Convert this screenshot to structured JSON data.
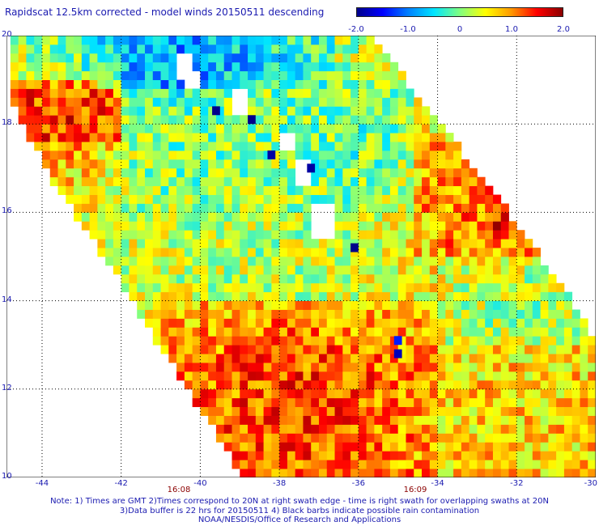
{
  "title": "Rapidscat 12.5km corrected - model winds 20150511 descending",
  "colorbar": {
    "ticks": [
      "-2.0",
      "-1.0",
      "0",
      "1.0",
      "2.0"
    ],
    "tick_values": [
      -2.0,
      -1.0,
      0,
      1.0,
      2.0
    ],
    "range": [
      -2.0,
      2.0
    ],
    "colors": [
      "#00008b",
      "#0000ff",
      "#0080ff",
      "#00e5ff",
      "#80ff80",
      "#ffff00",
      "#ff9900",
      "#ff0000",
      "#8b0000"
    ]
  },
  "chart_data": {
    "type": "heatmap",
    "title": "Rapidscat 12.5km corrected - model winds 20150511 descending",
    "xlabel": "",
    "ylabel": "",
    "x_ticks": [
      "-44",
      "-42",
      "-40",
      "-38",
      "-36",
      "-34",
      "-32",
      "-30"
    ],
    "x_tick_values": [
      -44,
      -42,
      -40,
      -38,
      -36,
      -34,
      -32,
      -30
    ],
    "y_ticks": [
      "10",
      "12",
      "14",
      "16",
      "18",
      "20"
    ],
    "y_tick_values": [
      10,
      12,
      14,
      16,
      18,
      20
    ],
    "xlim": [
      -44.9,
      -30
    ],
    "ylim": [
      10,
      20
    ],
    "grid": true,
    "grid_style": "dotted",
    "value_range": [
      -2.0,
      2.0
    ],
    "swath": {
      "description_lon_edges": {
        "left_edge": [
          [
            18.8,
            -44.9
          ],
          [
            16.5,
            -43.5
          ],
          [
            14.5,
            -42.0
          ],
          [
            12.5,
            -40.6
          ],
          [
            10.0,
            -38.8
          ]
        ],
        "right_edge": [
          [
            20.0,
            -35.8
          ],
          [
            18.0,
            -34.0
          ],
          [
            16.0,
            -32.3
          ],
          [
            14.0,
            -30.7
          ],
          [
            13.0,
            -30.0
          ]
        ]
      }
    },
    "regions": [
      {
        "lat": [
          18.8,
          20.0
        ],
        "lon": [
          -44.9,
          -36.5
        ],
        "mean": -0.9
      },
      {
        "lat": [
          17.5,
          19.0
        ],
        "lon": [
          -44.9,
          -42.0
        ],
        "mean": 1.4
      },
      {
        "lat": [
          16.0,
          18.8
        ],
        "lon": [
          -42.0,
          -38.0
        ],
        "mean": 0.0
      },
      {
        "lat": [
          16.0,
          19.0
        ],
        "lon": [
          -38.0,
          -34.5
        ],
        "mean": -0.1
      },
      {
        "lat": [
          15.0,
          17.5
        ],
        "lon": [
          -34.5,
          -31.5
        ],
        "mean": 1.0
      },
      {
        "lat": [
          15.5,
          16.3
        ],
        "lon": [
          -32.6,
          -31.5
        ],
        "mean": 1.8
      },
      {
        "lat": [
          14.0,
          16.0
        ],
        "lon": [
          -42.0,
          -34.0
        ],
        "mean": 0.2
      },
      {
        "lat": [
          13.0,
          15.0
        ],
        "lon": [
          -34.0,
          -30.0
        ],
        "mean": 0.1
      },
      {
        "lat": [
          10.0,
          14.0
        ],
        "lon": [
          -41.0,
          -34.0
        ],
        "mean": 1.3
      },
      {
        "lat": [
          10.0,
          13.0
        ],
        "lon": [
          -34.0,
          -30.0
        ],
        "mean": 0.7
      }
    ],
    "missing_cells": [
      {
        "lat": 19.3,
        "lon": -40.4
      },
      {
        "lat": 19.0,
        "lon": -40.2
      },
      {
        "lat": 18.5,
        "lon": -39.0
      },
      {
        "lat": 17.6,
        "lon": -37.8
      },
      {
        "lat": 16.9,
        "lon": -37.4
      },
      {
        "lat": 16.0,
        "lon": -36.9
      },
      {
        "lat": 15.7,
        "lon": -36.9
      }
    ],
    "outliers": [
      {
        "lat": 18.3,
        "lon": -39.6,
        "value": -2.0
      },
      {
        "lat": 18.1,
        "lon": -38.7,
        "value": -2.0
      },
      {
        "lat": 17.3,
        "lon": -38.2,
        "value": -1.9
      },
      {
        "lat": 17.0,
        "lon": -37.2,
        "value": -1.9
      },
      {
        "lat": 15.2,
        "lon": -36.1,
        "value": -2.0
      },
      {
        "lat": 13.1,
        "lon": -35.0,
        "value": -1.4
      },
      {
        "lat": 12.8,
        "lon": -35.0,
        "value": -1.8
      }
    ]
  },
  "time_labels": [
    {
      "text": "16:08",
      "lon": -40.8
    },
    {
      "text": "16:09",
      "lon": -35.2
    }
  ],
  "notes": [
    "Note: 1) Times are GMT 2)Times correspond to 20N at right swath edge - time is right swath for overlapping swaths at 20N",
    "3)Data buffer is 22 hrs for 20150511 4) Black barbs indicate possible rain contamination",
    "NOAA/NESDIS/Office of Research and Applications"
  ]
}
